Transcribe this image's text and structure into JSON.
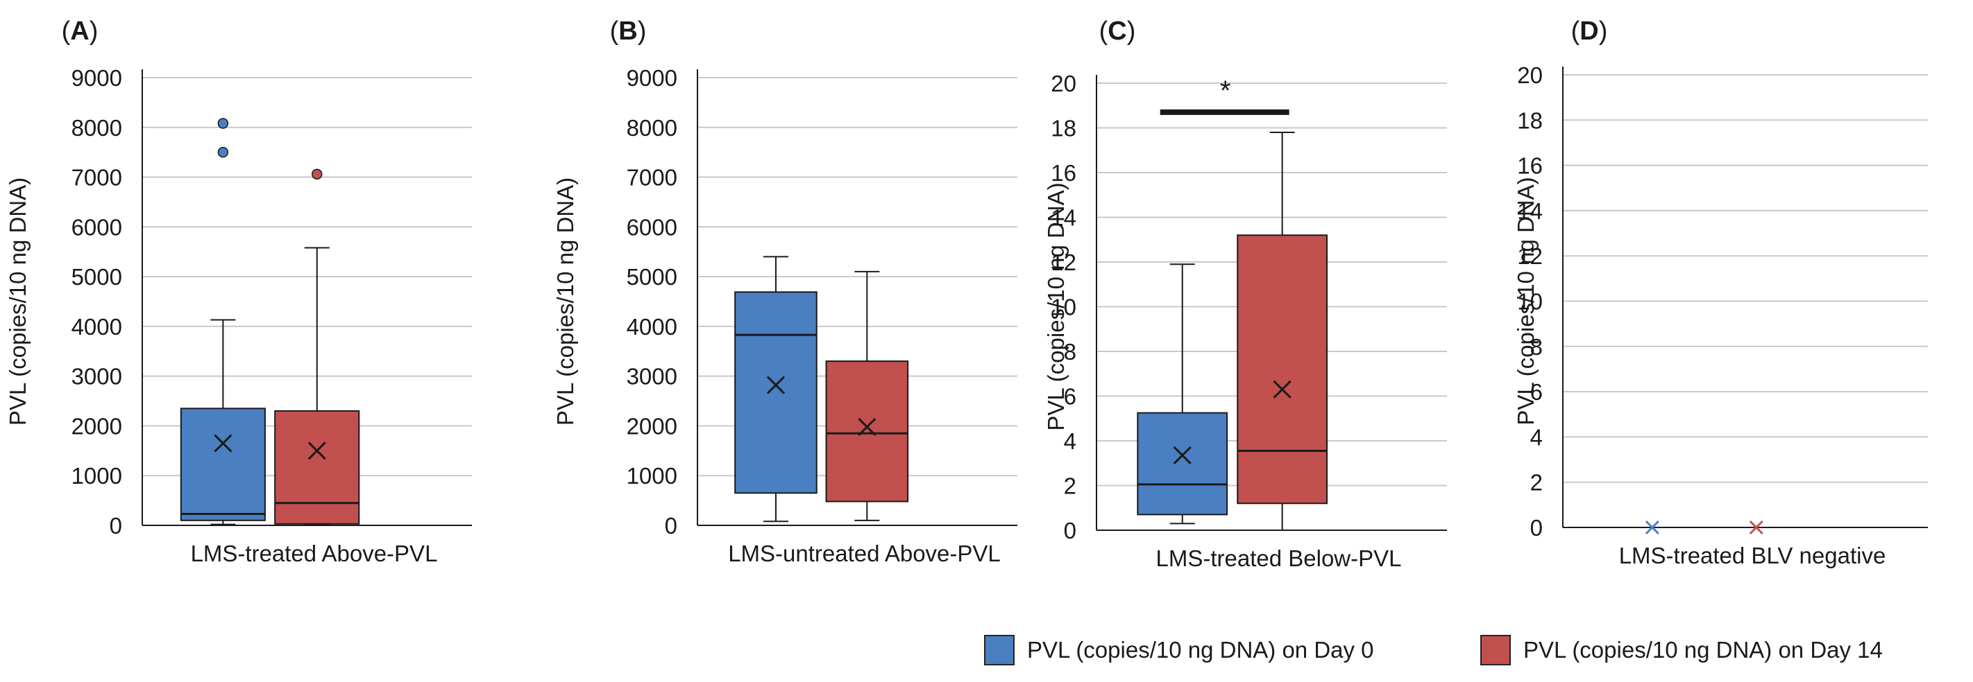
{
  "colors": {
    "day0": "#4a7fc1",
    "day14": "#c1504f",
    "line": "#1a1a1a",
    "grid": "#c8c8c8"
  },
  "legend": {
    "day0_label": "PVL (copies/10 ng DNA) on Day 0",
    "day14_label": "PVL (copies/10 ng DNA) on Day 14"
  },
  "chart_data": [
    {
      "type": "box",
      "panel_label": "A",
      "title": "",
      "xlabel": "LMS-treated Above-PVL",
      "ylabel": "PVL (copies/10 ng DNA)",
      "ylim": [
        0,
        9000
      ],
      "yticks": [
        0,
        1000,
        2000,
        3000,
        4000,
        5000,
        6000,
        7000,
        8000,
        9000
      ],
      "series": [
        {
          "name": "PVL (copies/10 ng DNA) on Day 0",
          "min": 20,
          "q1": 100,
          "median": 230,
          "q3": 2350,
          "max": 4130,
          "mean": 1650,
          "outliers": [
            7500,
            8080
          ]
        },
        {
          "name": "PVL (copies/10 ng DNA) on Day 14",
          "min": 10,
          "q1": 30,
          "median": 450,
          "q3": 2300,
          "max": 5580,
          "mean": 1500,
          "outliers": [
            7060
          ]
        }
      ]
    },
    {
      "type": "box",
      "panel_label": "B",
      "title": "",
      "xlabel": "LMS-untreated Above-PVL",
      "ylabel": "PVL (copies/10 ng DNA)",
      "ylim": [
        0,
        9000
      ],
      "yticks": [
        0,
        1000,
        2000,
        3000,
        4000,
        5000,
        6000,
        7000,
        8000,
        9000
      ],
      "series": [
        {
          "name": "PVL (copies/10 ng DNA) on Day 0",
          "min": 80,
          "q1": 650,
          "median": 3830,
          "q3": 4690,
          "max": 5400,
          "mean": 2820,
          "outliers": []
        },
        {
          "name": "PVL (copies/10 ng DNA) on Day 14",
          "min": 100,
          "q1": 480,
          "median": 1850,
          "q3": 3300,
          "max": 5100,
          "mean": 1980,
          "outliers": []
        }
      ]
    },
    {
      "type": "box",
      "panel_label": "C",
      "title": "",
      "xlabel": "LMS-treated Below-PVL",
      "ylabel": "PVL (copies/10 ng DNA)",
      "ylim": [
        0,
        20
      ],
      "yticks": [
        0,
        2,
        4,
        6,
        8,
        10,
        12,
        14,
        16,
        18,
        20
      ],
      "significance": {
        "label": "*",
        "value": 18.7
      },
      "series": [
        {
          "name": "PVL (copies/10 ng DNA) on Day 0",
          "min": 0.3,
          "q1": 0.7,
          "median": 2.05,
          "q3": 5.25,
          "max": 11.9,
          "mean": 3.35,
          "outliers": []
        },
        {
          "name": "PVL (copies/10 ng DNA) on Day 14",
          "min": 0,
          "q1": 1.2,
          "median": 3.55,
          "q3": 13.2,
          "max": 17.8,
          "mean": 6.3,
          "outliers": []
        }
      ]
    },
    {
      "type": "box",
      "panel_label": "D",
      "title": "",
      "xlabel": "LMS-treated BLV negative",
      "ylabel": "PVL (copies/10 ng DNA)",
      "ylim": [
        0,
        20
      ],
      "yticks": [
        0,
        2,
        4,
        6,
        8,
        10,
        12,
        14,
        16,
        18,
        20
      ],
      "series": [
        {
          "name": "PVL (copies/10 ng DNA) on Day 0",
          "min": 0,
          "q1": 0,
          "median": 0,
          "q3": 0,
          "max": 0,
          "mean": 0,
          "outliers": []
        },
        {
          "name": "PVL (copies/10 ng DNA) on Day 14",
          "min": 0,
          "q1": 0,
          "median": 0,
          "q3": 0,
          "max": 0,
          "mean": 0,
          "outliers": []
        }
      ]
    }
  ]
}
